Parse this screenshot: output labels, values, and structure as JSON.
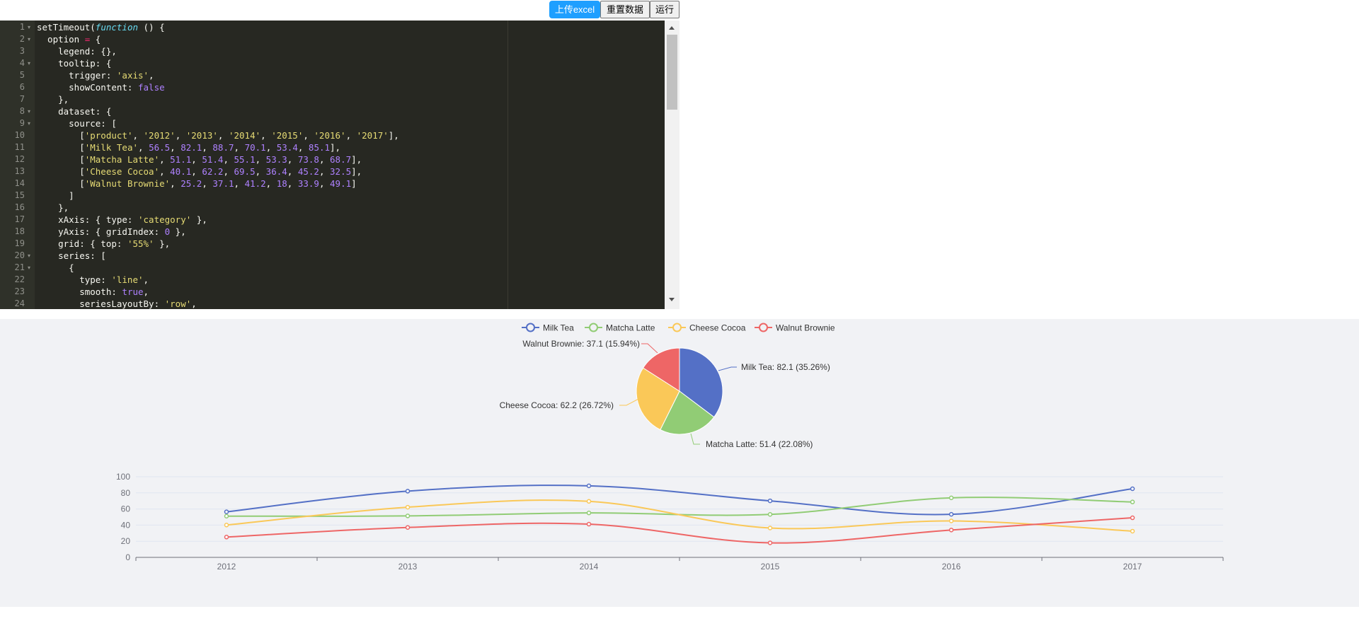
{
  "toolbar": {
    "upload_label": "上传excel",
    "reset_label": "重置数据",
    "run_label": "运行"
  },
  "editor": {
    "lines": [
      {
        "n": "1",
        "fold": true,
        "tokens": [
          [
            "",
            "setTimeout("
          ],
          [
            "kw",
            "function"
          ],
          [
            "",
            " () {"
          ]
        ]
      },
      {
        "n": "2",
        "fold": true,
        "tokens": [
          [
            "",
            "  option "
          ],
          [
            "op",
            "="
          ],
          [
            "",
            " {"
          ]
        ]
      },
      {
        "n": "3",
        "fold": false,
        "tokens": [
          [
            "",
            "    legend: {},"
          ]
        ]
      },
      {
        "n": "4",
        "fold": true,
        "tokens": [
          [
            "",
            "    tooltip: {"
          ]
        ]
      },
      {
        "n": "5",
        "fold": false,
        "tokens": [
          [
            "",
            "      trigger: "
          ],
          [
            "str",
            "'axis'"
          ],
          [
            "",
            ","
          ]
        ]
      },
      {
        "n": "6",
        "fold": false,
        "tokens": [
          [
            "",
            "      showContent: "
          ],
          [
            "num",
            "false"
          ]
        ]
      },
      {
        "n": "7",
        "fold": false,
        "tokens": [
          [
            "",
            "    },"
          ]
        ]
      },
      {
        "n": "8",
        "fold": true,
        "tokens": [
          [
            "",
            "    dataset: {"
          ]
        ]
      },
      {
        "n": "9",
        "fold": true,
        "tokens": [
          [
            "",
            "      source: ["
          ]
        ]
      },
      {
        "n": "10",
        "fold": false,
        "tokens": [
          [
            "",
            "        ["
          ],
          [
            "str",
            "'product'"
          ],
          [
            "",
            ", "
          ],
          [
            "str",
            "'2012'"
          ],
          [
            "",
            ", "
          ],
          [
            "str",
            "'2013'"
          ],
          [
            "",
            ", "
          ],
          [
            "str",
            "'2014'"
          ],
          [
            "",
            ", "
          ],
          [
            "str",
            "'2015'"
          ],
          [
            "",
            ", "
          ],
          [
            "str",
            "'2016'"
          ],
          [
            "",
            ", "
          ],
          [
            "str",
            "'2017'"
          ],
          [
            "",
            "],"
          ]
        ]
      },
      {
        "n": "11",
        "fold": false,
        "tokens": [
          [
            "",
            "        ["
          ],
          [
            "str",
            "'Milk Tea'"
          ],
          [
            "",
            ", "
          ],
          [
            "num",
            "56.5"
          ],
          [
            "",
            ", "
          ],
          [
            "num",
            "82.1"
          ],
          [
            "",
            ", "
          ],
          [
            "num",
            "88.7"
          ],
          [
            "",
            ", "
          ],
          [
            "num",
            "70.1"
          ],
          [
            "",
            ", "
          ],
          [
            "num",
            "53.4"
          ],
          [
            "",
            ", "
          ],
          [
            "num",
            "85.1"
          ],
          [
            "",
            "],"
          ]
        ]
      },
      {
        "n": "12",
        "fold": false,
        "tokens": [
          [
            "",
            "        ["
          ],
          [
            "str",
            "'Matcha Latte'"
          ],
          [
            "",
            ", "
          ],
          [
            "num",
            "51.1"
          ],
          [
            "",
            ", "
          ],
          [
            "num",
            "51.4"
          ],
          [
            "",
            ", "
          ],
          [
            "num",
            "55.1"
          ],
          [
            "",
            ", "
          ],
          [
            "num",
            "53.3"
          ],
          [
            "",
            ", "
          ],
          [
            "num",
            "73.8"
          ],
          [
            "",
            ", "
          ],
          [
            "num",
            "68.7"
          ],
          [
            "",
            "],"
          ]
        ]
      },
      {
        "n": "13",
        "fold": false,
        "tokens": [
          [
            "",
            "        ["
          ],
          [
            "str",
            "'Cheese Cocoa'"
          ],
          [
            "",
            ", "
          ],
          [
            "num",
            "40.1"
          ],
          [
            "",
            ", "
          ],
          [
            "num",
            "62.2"
          ],
          [
            "",
            ", "
          ],
          [
            "num",
            "69.5"
          ],
          [
            "",
            ", "
          ],
          [
            "num",
            "36.4"
          ],
          [
            "",
            ", "
          ],
          [
            "num",
            "45.2"
          ],
          [
            "",
            ", "
          ],
          [
            "num",
            "32.5"
          ],
          [
            "",
            "],"
          ]
        ]
      },
      {
        "n": "14",
        "fold": false,
        "tokens": [
          [
            "",
            "        ["
          ],
          [
            "str",
            "'Walnut Brownie'"
          ],
          [
            "",
            ", "
          ],
          [
            "num",
            "25.2"
          ],
          [
            "",
            ", "
          ],
          [
            "num",
            "37.1"
          ],
          [
            "",
            ", "
          ],
          [
            "num",
            "41.2"
          ],
          [
            "",
            ", "
          ],
          [
            "num",
            "18"
          ],
          [
            "",
            ", "
          ],
          [
            "num",
            "33.9"
          ],
          [
            "",
            ", "
          ],
          [
            "num",
            "49.1"
          ],
          [
            "",
            "]"
          ]
        ]
      },
      {
        "n": "15",
        "fold": false,
        "tokens": [
          [
            "",
            "      ]"
          ]
        ]
      },
      {
        "n": "16",
        "fold": false,
        "tokens": [
          [
            "",
            "    },"
          ]
        ]
      },
      {
        "n": "17",
        "fold": false,
        "tokens": [
          [
            "",
            "    xAxis: { type: "
          ],
          [
            "str",
            "'category'"
          ],
          [
            "",
            " },"
          ]
        ]
      },
      {
        "n": "18",
        "fold": false,
        "tokens": [
          [
            "",
            "    yAxis: { gridIndex: "
          ],
          [
            "num",
            "0"
          ],
          [
            "",
            " },"
          ]
        ]
      },
      {
        "n": "19",
        "fold": false,
        "tokens": [
          [
            "",
            "    grid: { top: "
          ],
          [
            "str",
            "'55%'"
          ],
          [
            "",
            " },"
          ]
        ]
      },
      {
        "n": "20",
        "fold": true,
        "tokens": [
          [
            "",
            "    series: ["
          ]
        ]
      },
      {
        "n": "21",
        "fold": true,
        "tokens": [
          [
            "",
            "      {"
          ]
        ]
      },
      {
        "n": "22",
        "fold": false,
        "tokens": [
          [
            "",
            "        type: "
          ],
          [
            "str",
            "'line'"
          ],
          [
            "",
            ","
          ]
        ]
      },
      {
        "n": "23",
        "fold": false,
        "tokens": [
          [
            "",
            "        smooth: "
          ],
          [
            "num",
            "true"
          ],
          [
            "",
            ","
          ]
        ]
      },
      {
        "n": "24",
        "fold": false,
        "tokens": [
          [
            "",
            "        seriesLayoutBy: "
          ],
          [
            "str",
            "'row'"
          ],
          [
            "",
            ","
          ]
        ]
      }
    ]
  },
  "chart_data": [
    {
      "type": "line",
      "categories": [
        "2012",
        "2013",
        "2014",
        "2015",
        "2016",
        "2017"
      ],
      "series": [
        {
          "name": "Milk Tea",
          "values": [
            56.5,
            82.1,
            88.7,
            70.1,
            53.4,
            85.1
          ],
          "color": "#5470c6"
        },
        {
          "name": "Matcha Latte",
          "values": [
            51.1,
            51.4,
            55.1,
            53.3,
            73.8,
            68.7
          ],
          "color": "#91cc75"
        },
        {
          "name": "Cheese Cocoa",
          "values": [
            40.1,
            62.2,
            69.5,
            36.4,
            45.2,
            32.5
          ],
          "color": "#fac858"
        },
        {
          "name": "Walnut Brownie",
          "values": [
            25.2,
            37.1,
            41.2,
            18,
            33.9,
            49.1
          ],
          "color": "#ee6666"
        }
      ],
      "ylim": [
        0,
        100
      ],
      "yticks": [
        "0",
        "20",
        "40",
        "60",
        "80",
        "100"
      ],
      "legend_position": "top-center",
      "smooth": true
    },
    {
      "type": "pie",
      "category": "2013",
      "slices": [
        {
          "name": "Milk Tea",
          "value": 82.1,
          "label": "Milk Tea: 82.1 (35.26%)",
          "color": "#5470c6"
        },
        {
          "name": "Matcha Latte",
          "value": 51.4,
          "label": "Matcha Latte: 51.4 (22.08%)",
          "color": "#91cc75"
        },
        {
          "name": "Cheese Cocoa",
          "value": 62.2,
          "label": "Cheese Cocoa: 62.2 (26.72%)",
          "color": "#fac858"
        },
        {
          "name": "Walnut Brownie",
          "value": 37.1,
          "label": "Walnut Brownie: 37.1 (15.94%)",
          "color": "#ee6666"
        }
      ]
    }
  ]
}
